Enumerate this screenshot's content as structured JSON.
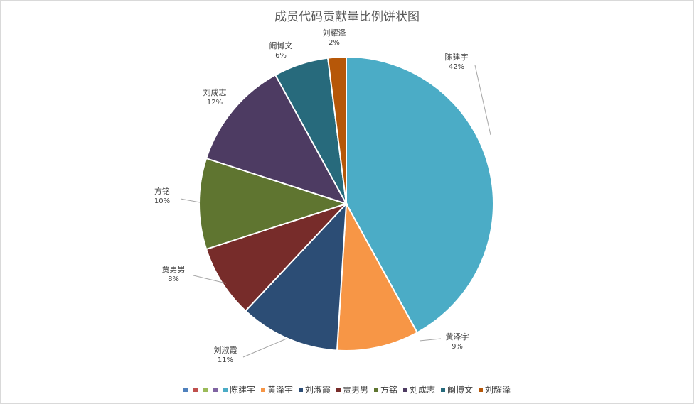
{
  "chart_data": {
    "type": "pie",
    "title": "成员代码贡献量比例饼状图",
    "slices": [
      {
        "name": "陈建宇",
        "value": 42,
        "label": "42%",
        "color": "#4bacc6"
      },
      {
        "name": "黄泽宇",
        "value": 9,
        "label": "9%",
        "color": "#f79646"
      },
      {
        "name": "刘淑霞",
        "value": 11,
        "label": "11%",
        "color": "#2c4d75"
      },
      {
        "name": "贾男男",
        "value": 8,
        "label": "8%",
        "color": "#772c2a"
      },
      {
        "name": "方铭",
        "value": 10,
        "label": "10%",
        "color": "#5f7530"
      },
      {
        "name": "刘成志",
        "value": 12,
        "label": "12%",
        "color": "#4d3b62"
      },
      {
        "name": "阚博文",
        "value": 6,
        "label": "6%",
        "color": "#276a7c"
      },
      {
        "name": "刘耀泽",
        "value": 2,
        "label": "2%",
        "color": "#b65708"
      }
    ],
    "legend": {
      "position": "bottom",
      "blank_entries": [
        {
          "color": "#4f81bd"
        },
        {
          "color": "#c0504d"
        },
        {
          "color": "#9bbb59"
        },
        {
          "color": "#8064a2"
        }
      ]
    }
  }
}
